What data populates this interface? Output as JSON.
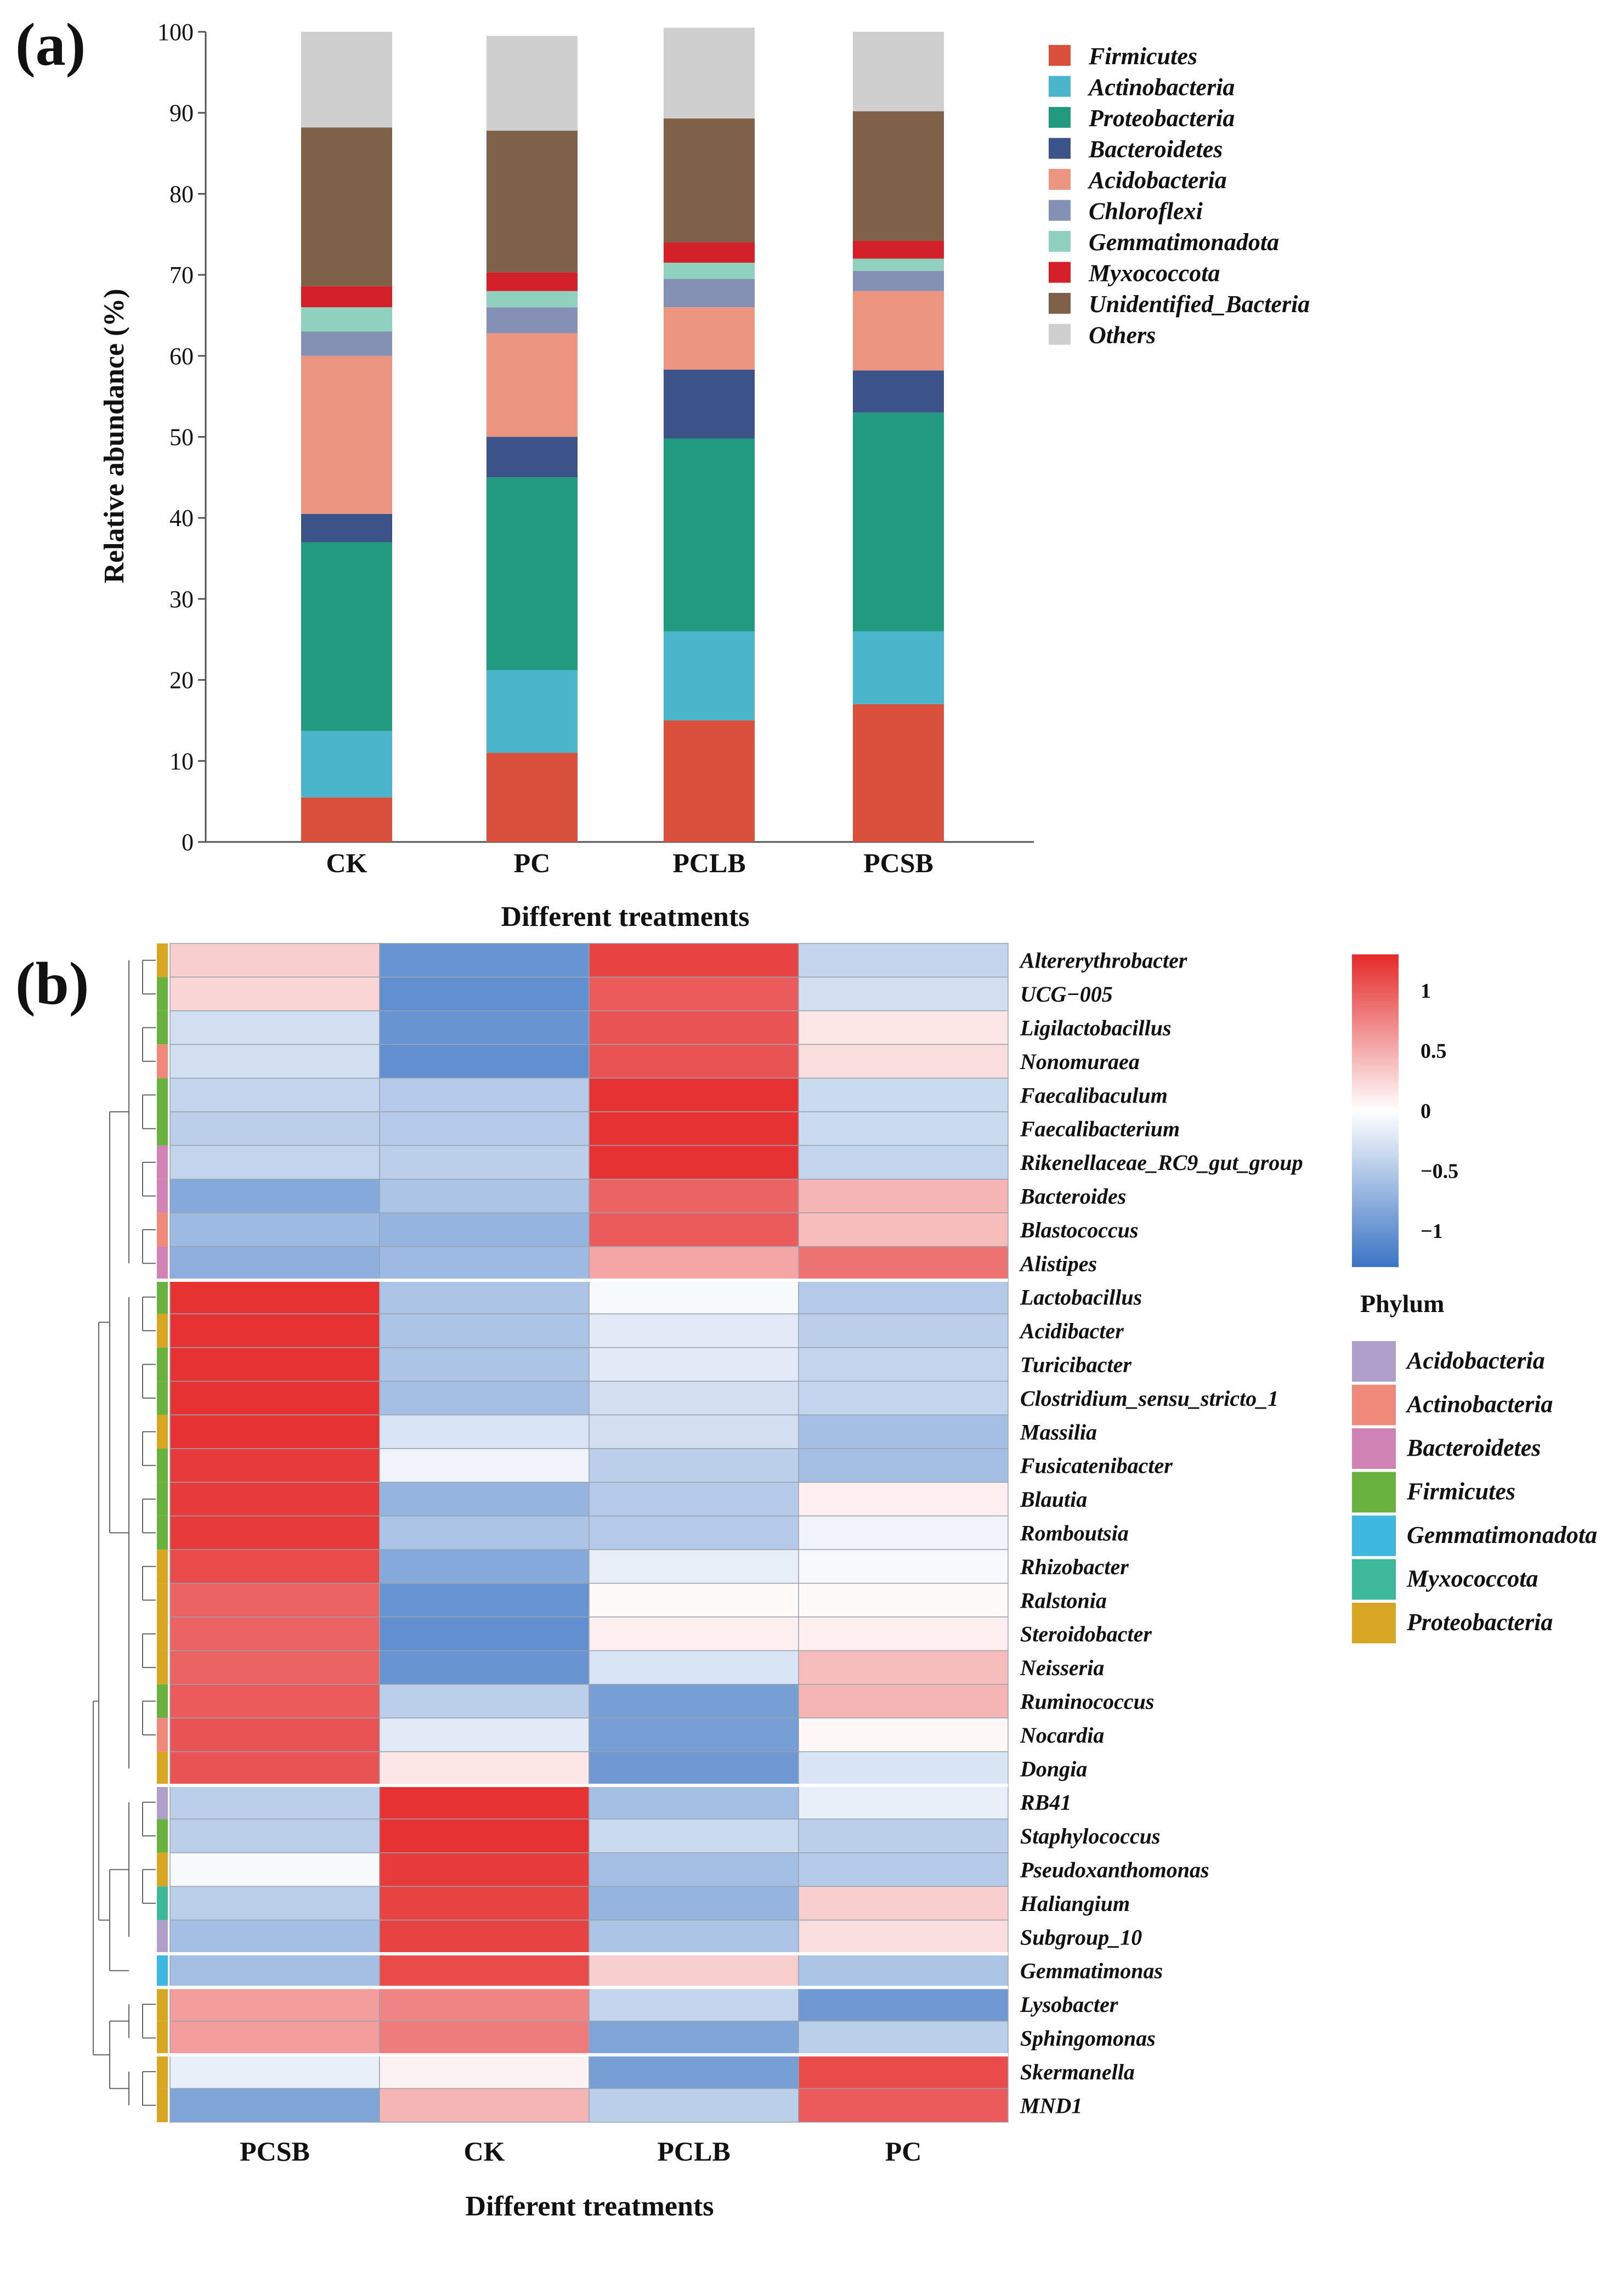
{
  "chart_data": [
    {
      "panel": "(a)",
      "type": "bar",
      "stacked": true,
      "categories": [
        "CK",
        "PC",
        "PCLB",
        "PCSB"
      ],
      "xlabel": "Different treatments",
      "ylabel": "Relative abundance (%)",
      "ylim": [
        0,
        100
      ],
      "yticks": [
        0,
        10,
        20,
        30,
        40,
        50,
        60,
        70,
        80,
        90,
        100
      ],
      "legend_position": "top-right",
      "series": [
        {
          "name": "Firmicutes",
          "color": "#d9503c",
          "values": [
            5.5,
            11.0,
            15.0,
            17.0
          ]
        },
        {
          "name": "Actinobacteria",
          "color": "#4bb5cb",
          "values": [
            8.2,
            10.2,
            11.0,
            9.0
          ]
        },
        {
          "name": "Proteobacteria",
          "color": "#229a80",
          "values": [
            23.3,
            23.8,
            23.8,
            27.0
          ]
        },
        {
          "name": "Bacteroidetes",
          "color": "#3c5389",
          "values": [
            3.5,
            5.0,
            8.5,
            5.2
          ]
        },
        {
          "name": "Acidobacteria",
          "color": "#ec9580",
          "values": [
            19.5,
            12.8,
            7.7,
            9.8
          ]
        },
        {
          "name": "Chloroflexi",
          "color": "#8491b4",
          "values": [
            3.0,
            3.2,
            3.5,
            2.5
          ]
        },
        {
          "name": "Gemmatimonadota",
          "color": "#90d0be",
          "values": [
            3.0,
            2.0,
            2.0,
            1.5
          ]
        },
        {
          "name": "Myxococcota",
          "color": "#d42029",
          "values": [
            2.6,
            2.3,
            2.5,
            2.2
          ]
        },
        {
          "name": "Unidentified_Bacteria",
          "color": "#7e6148",
          "values": [
            19.6,
            17.5,
            15.3,
            16.0
          ]
        },
        {
          "name": "Others",
          "color": "#cfcfcf",
          "values": [
            11.8,
            11.7,
            11.2,
            9.8
          ]
        }
      ]
    },
    {
      "panel": "(b)",
      "type": "heatmap",
      "columns": [
        "PCSB",
        "CK",
        "PCLB",
        "PC"
      ],
      "xlabel": "Different treatments",
      "color_scale": {
        "min": -1.3,
        "max": 1.3,
        "low": "#3b74c4",
        "mid": "#ffffff",
        "high": "#e52a2a",
        "ticks": [
          1,
          0.5,
          0,
          -0.5,
          -1
        ],
        "tick_labels": [
          "1",
          "0.5",
          "0",
          "−0.5",
          "−1"
        ]
      },
      "phylum_legend_title": "Phylum",
      "phyla": [
        {
          "name": "Acidobacteria",
          "color": "#b19fcb"
        },
        {
          "name": "Actinobacteria",
          "color": "#ef8a7a"
        },
        {
          "name": "Bacteroidetes",
          "color": "#d283b6"
        },
        {
          "name": "Firmicutes",
          "color": "#6ab23f"
        },
        {
          "name": "Gemmatimonadota",
          "color": "#3fb8e0"
        },
        {
          "name": "Myxococcota",
          "color": "#3db89a"
        },
        {
          "name": "Proteobacteria",
          "color": "#d8a622"
        }
      ],
      "row_groups": [
        10,
        15,
        5,
        1,
        2,
        2
      ],
      "rows": [
        {
          "name": "Altererythrobacter",
          "phylum": "Proteobacteria",
          "values": [
            0.3,
            -1.0,
            1.15,
            -0.4
          ]
        },
        {
          "name": "UCG−005",
          "phylum": "Firmicutes",
          "values": [
            0.25,
            -1.05,
            1.0,
            -0.3
          ]
        },
        {
          "name": "Ligilactobacillus",
          "phylum": "Firmicutes",
          "values": [
            -0.3,
            -1.0,
            1.05,
            0.15
          ]
        },
        {
          "name": "Nonomuraea",
          "phylum": "Actinobacteria",
          "values": [
            -0.3,
            -1.05,
            1.05,
            0.2
          ]
        },
        {
          "name": "Faecalibaculum",
          "phylum": "Firmicutes",
          "values": [
            -0.4,
            -0.5,
            1.25,
            -0.35
          ]
        },
        {
          "name": "Faecalibacterium",
          "phylum": "Firmicutes",
          "values": [
            -0.45,
            -0.5,
            1.25,
            -0.35
          ]
        },
        {
          "name": "Rikenellaceae_RC9_gut_group",
          "phylum": "Bacteroidetes",
          "values": [
            -0.4,
            -0.45,
            1.25,
            -0.4
          ]
        },
        {
          "name": "Bacteroides",
          "phylum": "Bacteroidetes",
          "values": [
            -0.8,
            -0.55,
            0.95,
            0.45
          ]
        },
        {
          "name": "Blastococcus",
          "phylum": "Actinobacteria",
          "values": [
            -0.65,
            -0.7,
            1.0,
            0.4
          ]
        },
        {
          "name": "Alistipes",
          "phylum": "Bacteroidetes",
          "values": [
            -0.75,
            -0.65,
            0.55,
            0.85
          ]
        },
        {
          "name": "Lactobacillus",
          "phylum": "Firmicutes",
          "values": [
            1.25,
            -0.55,
            -0.05,
            -0.5
          ]
        },
        {
          "name": "Acidibacter",
          "phylum": "Proteobacteria",
          "values": [
            1.25,
            -0.55,
            -0.2,
            -0.45
          ]
        },
        {
          "name": "Turicibacter",
          "phylum": "Firmicutes",
          "values": [
            1.25,
            -0.55,
            -0.2,
            -0.4
          ]
        },
        {
          "name": "Clostridium_sensu_stricto_1",
          "phylum": "Firmicutes",
          "values": [
            1.25,
            -0.6,
            -0.3,
            -0.4
          ]
        },
        {
          "name": "Massilia",
          "phylum": "Proteobacteria",
          "values": [
            1.25,
            -0.25,
            -0.3,
            -0.6
          ]
        },
        {
          "name": "Fusicatenibacter",
          "phylum": "Firmicutes",
          "values": [
            1.2,
            -0.1,
            -0.45,
            -0.6
          ]
        },
        {
          "name": "Blautia",
          "phylum": "Firmicutes",
          "values": [
            1.2,
            -0.7,
            -0.5,
            0.1
          ]
        },
        {
          "name": "Romboutsia",
          "phylum": "Firmicutes",
          "values": [
            1.2,
            -0.55,
            -0.5,
            -0.1
          ]
        },
        {
          "name": "Rhizobacter",
          "phylum": "Proteobacteria",
          "values": [
            1.1,
            -0.8,
            -0.15,
            -0.05
          ]
        },
        {
          "name": "Ralstonia",
          "phylum": "Proteobacteria",
          "values": [
            0.95,
            -1.0,
            0.03,
            0.03
          ]
        },
        {
          "name": "Steroidobacter",
          "phylum": "Proteobacteria",
          "values": [
            0.95,
            -1.05,
            0.1,
            0.1
          ]
        },
        {
          "name": "Neisseria",
          "phylum": "Proteobacteria",
          "values": [
            0.95,
            -1.0,
            -0.25,
            0.4
          ]
        },
        {
          "name": "Ruminococcus",
          "phylum": "Firmicutes",
          "values": [
            1.0,
            -0.45,
            -0.9,
            0.45
          ]
        },
        {
          "name": "Nocardia",
          "phylum": "Actinobacteria",
          "values": [
            1.05,
            -0.2,
            -0.9,
            0.05
          ]
        },
        {
          "name": "Dongia",
          "phylum": "Proteobacteria",
          "values": [
            1.05,
            0.15,
            -0.95,
            -0.25
          ]
        },
        {
          "name": "RB41",
          "phylum": "Acidobacteria",
          "values": [
            -0.45,
            1.25,
            -0.6,
            -0.15
          ]
        },
        {
          "name": "Staphylococcus",
          "phylum": "Firmicutes",
          "values": [
            -0.45,
            1.25,
            -0.35,
            -0.45
          ]
        },
        {
          "name": "Pseudoxanthomonas",
          "phylum": "Proteobacteria",
          "values": [
            -0.05,
            1.2,
            -0.6,
            -0.5
          ]
        },
        {
          "name": "Haliangium",
          "phylum": "Myxococcota",
          "values": [
            -0.45,
            1.15,
            -0.7,
            0.3
          ]
        },
        {
          "name": "Subgroup_10",
          "phylum": "Acidobacteria",
          "values": [
            -0.6,
            1.15,
            -0.55,
            0.2
          ]
        },
        {
          "name": "Gemmatimonas",
          "phylum": "Gemmatimonadota",
          "values": [
            -0.6,
            1.1,
            0.3,
            -0.55
          ]
        },
        {
          "name": "Lysobacter",
          "phylum": "Proteobacteria",
          "values": [
            0.6,
            0.75,
            -0.4,
            -0.95
          ]
        },
        {
          "name": "Sphingomonas",
          "phylum": "Proteobacteria",
          "values": [
            0.6,
            0.8,
            -0.85,
            -0.45
          ]
        },
        {
          "name": "Skermanella",
          "phylum": "Proteobacteria",
          "values": [
            -0.15,
            0.08,
            -0.9,
            1.1
          ]
        },
        {
          "name": "MND1",
          "phylum": "Proteobacteria",
          "values": [
            -0.85,
            0.45,
            -0.45,
            1.0
          ]
        }
      ]
    }
  ]
}
